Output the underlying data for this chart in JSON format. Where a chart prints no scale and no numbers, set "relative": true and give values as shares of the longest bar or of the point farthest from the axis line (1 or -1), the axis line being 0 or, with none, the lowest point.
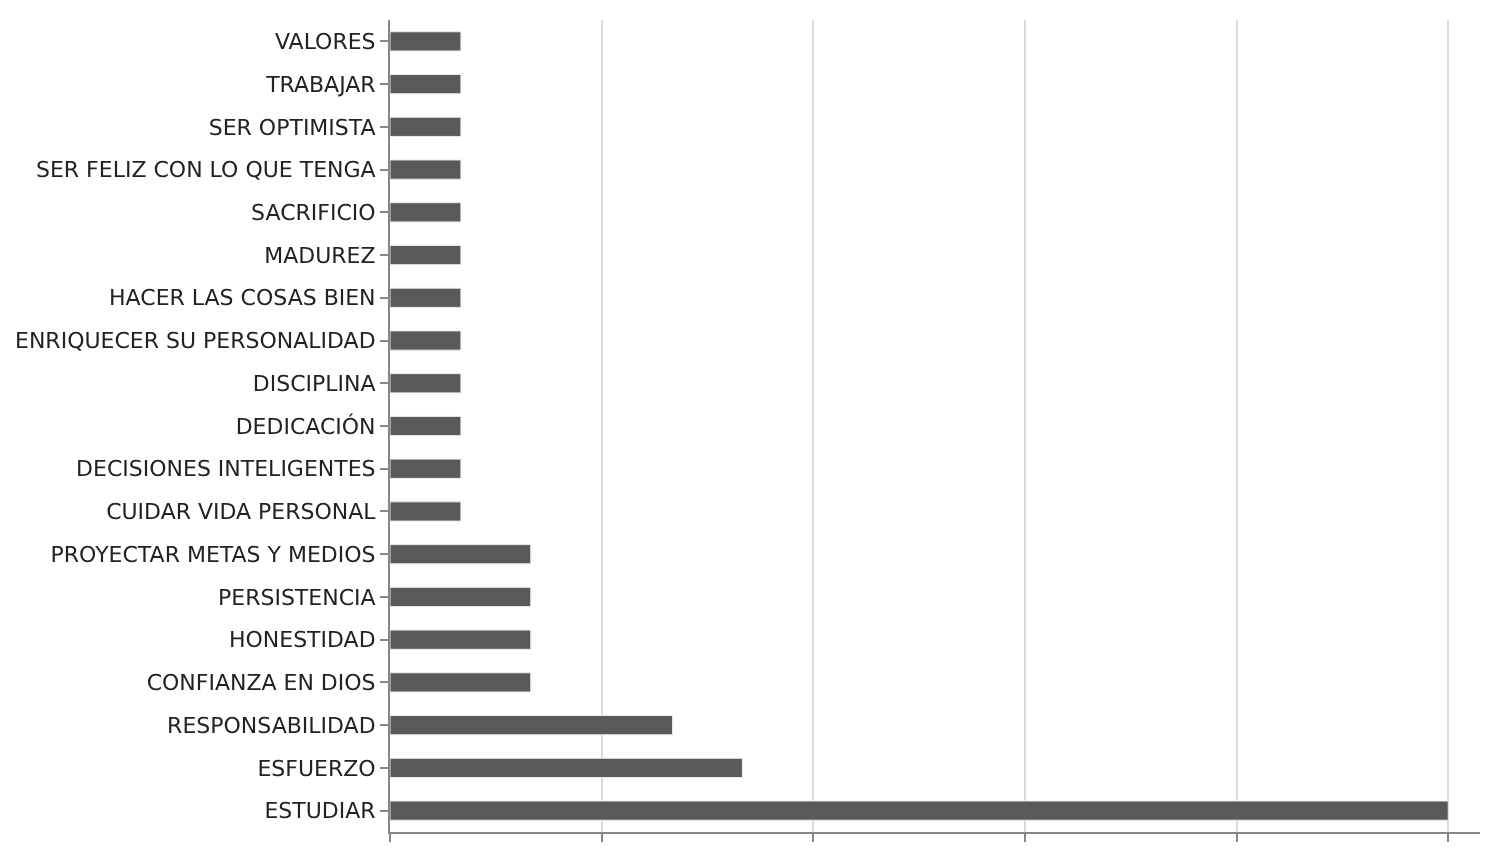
{
  "chart_data": {
    "type": "bar",
    "orientation": "horizontal",
    "relative": true,
    "grid": "x",
    "categories": [
      "VALORES",
      "TRABAJAR",
      "SER OPTIMISTA",
      "SER FELIZ CON LO QUE TENGA",
      "SACRIFICIO",
      "MADUREZ",
      "HACER LAS COSAS BIEN",
      "ENRIQUECER SU PERSONALIDAD",
      "DISCIPLINA",
      "DEDICACIÓN",
      "DECISIONES INTELIGENTES",
      "CUIDAR VIDA PERSONAL",
      "PROYECTAR METAS Y MEDIOS",
      "PERSISTENCIA",
      "HONESTIDAD",
      "CONFIANZA EN DIOS",
      "RESPONSABILIDAD",
      "ESFUERZO",
      "ESTUDIAR"
    ],
    "values": [
      0.067,
      0.067,
      0.067,
      0.067,
      0.067,
      0.067,
      0.067,
      0.067,
      0.067,
      0.067,
      0.067,
      0.067,
      0.133,
      0.133,
      0.133,
      0.133,
      0.267,
      0.333,
      1
    ],
    "color": "#595959"
  }
}
